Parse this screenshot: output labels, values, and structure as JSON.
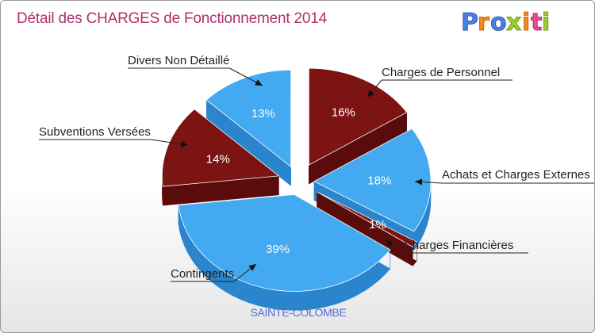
{
  "header": {
    "title": "Détail des CHARGES de Fonctionnement 2014",
    "logo_text": "Proxiti"
  },
  "footer": {
    "commune": "SAINTE-COLOMBE"
  },
  "colors": {
    "blue": "#43a9f0",
    "blue_side": "#2a85cc",
    "red": "#7d1414",
    "red_side": "#5a0c0c",
    "title": "#b0306a",
    "commune": "#4b6ee0"
  },
  "chart_data": {
    "type": "pie",
    "style": "exploded 3D",
    "title": "Détail des CHARGES de Fonctionnement 2014",
    "series": [
      {
        "name": "Charges de Personnel",
        "value": 16,
        "label": "16%",
        "color": "red"
      },
      {
        "name": "Achats et Charges Externes",
        "value": 18,
        "label": "18%",
        "color": "blue"
      },
      {
        "name": "Charges Financières",
        "value": 1,
        "label": "1%",
        "color": "red"
      },
      {
        "name": "Contingents",
        "value": 39,
        "label": "39%",
        "color": "blue"
      },
      {
        "name": "Subventions Versées",
        "value": 14,
        "label": "14%",
        "color": "red"
      },
      {
        "name": "Divers Non Détaillé",
        "value": 13,
        "label": "13%",
        "color": "blue"
      }
    ]
  }
}
